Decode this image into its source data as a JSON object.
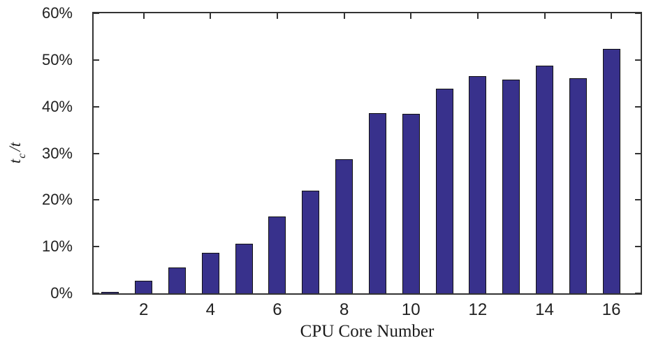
{
  "chart_data": {
    "type": "bar",
    "title": "",
    "xlabel": "CPU Core Number",
    "ylabel": {
      "base": "t",
      "subscript": "c",
      "rest": "/t"
    },
    "categories": [
      1,
      2,
      3,
      4,
      5,
      6,
      7,
      8,
      9,
      10,
      11,
      12,
      13,
      14,
      15,
      16
    ],
    "values": [
      0.2,
      2.7,
      5.5,
      8.7,
      10.7,
      16.5,
      22.0,
      28.8,
      38.6,
      38.4,
      43.9,
      46.6,
      45.8,
      48.8,
      46.1,
      52.3
    ],
    "unit": "%",
    "xticks": [
      2,
      4,
      6,
      8,
      10,
      12,
      14,
      16
    ],
    "xtick_labels": [
      "2",
      "4",
      "6",
      "8",
      "10",
      "12",
      "14",
      "16"
    ],
    "yticks": [
      0,
      10,
      20,
      30,
      40,
      50,
      60
    ],
    "ytick_labels": [
      "0%",
      "10%",
      "20%",
      "30%",
      "40%",
      "50%",
      "60%"
    ],
    "ylim": [
      0,
      60
    ],
    "xlim": [
      0.5,
      16.875
    ],
    "grid": false,
    "legend": null,
    "box": true,
    "bar_color": "#38318C",
    "bar_edge_color": "#111111",
    "axis_color": "#333333"
  }
}
